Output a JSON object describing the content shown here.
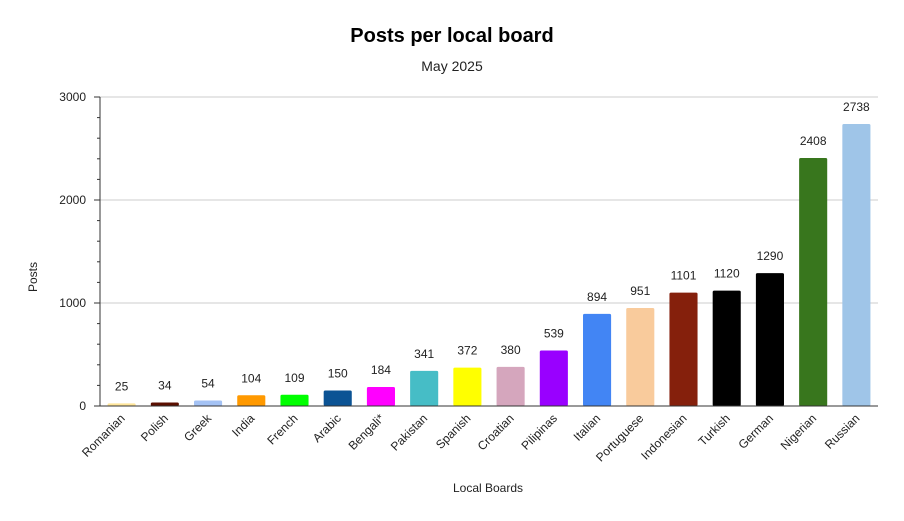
{
  "chart_data": {
    "type": "bar",
    "title": "Posts per local board",
    "subtitle": "May 2025",
    "xlabel": "Local Boards",
    "ylabel": "Posts",
    "ylim": [
      0,
      3000
    ],
    "yticks": [
      0,
      1000,
      2000,
      3000
    ],
    "grid": true,
    "legend": "none",
    "categories": [
      "Romanian",
      "Polish",
      "Greek",
      "India",
      "French",
      "Arabic",
      "Bengali*",
      "Pakistan",
      "Spanish",
      "Croatian",
      "Pilipinas",
      "Italian",
      "Portuguese",
      "Indonesian",
      "Turkish",
      "German",
      "Nigerian",
      "Russian"
    ],
    "values": [
      25,
      34,
      54,
      104,
      109,
      150,
      184,
      341,
      372,
      380,
      539,
      894,
      951,
      1101,
      1120,
      1290,
      2408,
      2738
    ],
    "colors": [
      "#ffe599",
      "#5b0f00",
      "#a4c2f4",
      "#ff9900",
      "#00ff00",
      "#0b5394",
      "#ff00ff",
      "#46bdc6",
      "#ffff00",
      "#d5a6bd",
      "#9900ff",
      "#4285f4",
      "#f9cb9c",
      "#85200c",
      "#000000",
      "#000000",
      "#38761d",
      "#9fc5e8"
    ]
  }
}
